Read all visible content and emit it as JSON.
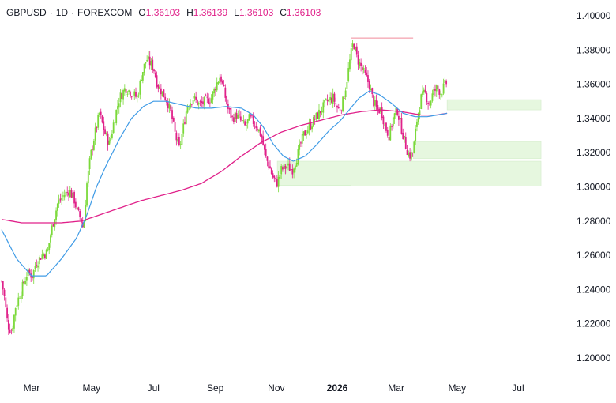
{
  "legend": {
    "symbol": "GBPUSD",
    "timeframe": "1D",
    "exchange": "FOREXCOM",
    "separator": "·",
    "open_label": "O",
    "open": "1.36103",
    "high_label": "H",
    "high": "1.36139",
    "low_label": "L",
    "low": "1.36103",
    "close_label": "C",
    "close": "1.36103"
  },
  "colors": {
    "up": "#7bd93a",
    "down": "#e0218a",
    "ma_fast": "#3f9be6",
    "ma_slow": "#e0218a",
    "zone_fill": "#e6f7df",
    "zone_edge": "#d4eccb",
    "high_line": "#f08a9a",
    "low_line": "#7bc96a",
    "axis_text": "#131722"
  },
  "chart_data": {
    "type": "candlestick",
    "symbol": "GBPUSD",
    "interval": "1D",
    "ylim": [
      1.19,
      1.405
    ],
    "y_ticks": [
      "1.40000",
      "1.38000",
      "1.36000",
      "1.34000",
      "1.32000",
      "1.30000",
      "1.28000",
      "1.26000",
      "1.24000",
      "1.22000",
      "1.20000"
    ],
    "x_ticks": [
      "Mar",
      "May",
      "Jul",
      "Sep",
      "Nov",
      "2026",
      "Mar",
      "May",
      "Jul"
    ],
    "x_tick_day_index": [
      30,
      90,
      152,
      214,
      275,
      336,
      395,
      456,
      517
    ],
    "days_visible": 540,
    "close_anchor_points": [
      [
        0,
        1.245
      ],
      [
        3,
        1.235
      ],
      [
        6,
        1.22
      ],
      [
        10,
        1.215
      ],
      [
        14,
        1.23
      ],
      [
        20,
        1.24
      ],
      [
        26,
        1.25
      ],
      [
        31,
        1.248
      ],
      [
        34,
        1.255
      ],
      [
        40,
        1.26
      ],
      [
        46,
        1.262
      ],
      [
        50,
        1.275
      ],
      [
        56,
        1.29
      ],
      [
        62,
        1.295
      ],
      [
        68,
        1.298
      ],
      [
        73,
        1.292
      ],
      [
        76,
        1.285
      ],
      [
        79,
        1.282
      ],
      [
        82,
        1.275
      ],
      [
        85,
        1.3
      ],
      [
        89,
        1.318
      ],
      [
        93,
        1.33
      ],
      [
        98,
        1.343
      ],
      [
        103,
        1.332
      ],
      [
        108,
        1.325
      ],
      [
        113,
        1.34
      ],
      [
        118,
        1.352
      ],
      [
        124,
        1.358
      ],
      [
        130,
        1.355
      ],
      [
        136,
        1.352
      ],
      [
        140,
        1.365
      ],
      [
        145,
        1.375
      ],
      [
        149,
        1.372
      ],
      [
        152,
        1.37
      ],
      [
        156,
        1.36
      ],
      [
        161,
        1.355
      ],
      [
        166,
        1.35
      ],
      [
        170,
        1.342
      ],
      [
        174,
        1.33
      ],
      [
        178,
        1.322
      ],
      [
        182,
        1.335
      ],
      [
        186,
        1.348
      ],
      [
        192,
        1.352
      ],
      [
        198,
        1.348
      ],
      [
        204,
        1.35
      ],
      [
        210,
        1.352
      ],
      [
        215,
        1.36
      ],
      [
        219,
        1.365
      ],
      [
        223,
        1.355
      ],
      [
        227,
        1.345
      ],
      [
        231,
        1.34
      ],
      [
        235,
        1.342
      ],
      [
        240,
        1.338
      ],
      [
        244,
        1.335
      ],
      [
        248,
        1.34
      ],
      [
        252,
        1.338
      ],
      [
        256,
        1.335
      ],
      [
        260,
        1.33
      ],
      [
        264,
        1.318
      ],
      [
        268,
        1.312
      ],
      [
        272,
        1.305
      ],
      [
        276,
        1.302
      ],
      [
        280,
        1.31
      ],
      [
        286,
        1.312
      ],
      [
        291,
        1.31
      ],
      [
        296,
        1.318
      ],
      [
        302,
        1.33
      ],
      [
        308,
        1.335
      ],
      [
        314,
        1.34
      ],
      [
        320,
        1.345
      ],
      [
        326,
        1.35
      ],
      [
        332,
        1.352
      ],
      [
        337,
        1.345
      ],
      [
        341,
        1.348
      ],
      [
        345,
        1.36
      ],
      [
        349,
        1.375
      ],
      [
        352,
        1.385
      ],
      [
        356,
        1.375
      ],
      [
        360,
        1.37
      ],
      [
        364,
        1.365
      ],
      [
        368,
        1.36
      ],
      [
        372,
        1.35
      ],
      [
        376,
        1.345
      ],
      [
        380,
        1.345
      ],
      [
        384,
        1.335
      ],
      [
        388,
        1.33
      ],
      [
        392,
        1.34
      ],
      [
        396,
        1.345
      ],
      [
        400,
        1.335
      ],
      [
        404,
        1.325
      ],
      [
        408,
        1.318
      ],
      [
        412,
        1.32
      ],
      [
        416,
        1.34
      ],
      [
        420,
        1.352
      ],
      [
        424,
        1.355
      ],
      [
        428,
        1.348
      ],
      [
        432,
        1.355
      ],
      [
        436,
        1.358
      ],
      [
        440,
        1.355
      ],
      [
        444,
        1.36
      ],
      [
        446,
        1.361
      ]
    ],
    "ma_fast_anchor_points": [
      [
        0,
        1.275
      ],
      [
        15,
        1.258
      ],
      [
        30,
        1.248
      ],
      [
        45,
        1.248
      ],
      [
        60,
        1.258
      ],
      [
        75,
        1.27
      ],
      [
        85,
        1.283
      ],
      [
        95,
        1.3
      ],
      [
        105,
        1.313
      ],
      [
        118,
        1.328
      ],
      [
        130,
        1.34
      ],
      [
        142,
        1.347
      ],
      [
        152,
        1.35
      ],
      [
        165,
        1.35
      ],
      [
        180,
        1.348
      ],
      [
        195,
        1.346
      ],
      [
        210,
        1.346
      ],
      [
        225,
        1.347
      ],
      [
        240,
        1.346
      ],
      [
        252,
        1.342
      ],
      [
        262,
        1.335
      ],
      [
        272,
        1.325
      ],
      [
        282,
        1.318
      ],
      [
        292,
        1.315
      ],
      [
        304,
        1.318
      ],
      [
        316,
        1.325
      ],
      [
        328,
        1.333
      ],
      [
        338,
        1.338
      ],
      [
        348,
        1.345
      ],
      [
        358,
        1.352
      ],
      [
        368,
        1.356
      ],
      [
        378,
        1.354
      ],
      [
        390,
        1.349
      ],
      [
        402,
        1.343
      ],
      [
        414,
        1.341
      ],
      [
        426,
        1.341
      ],
      [
        436,
        1.342
      ],
      [
        446,
        1.343
      ]
    ],
    "ma_slow_anchor_points": [
      [
        0,
        1.281
      ],
      [
        20,
        1.279
      ],
      [
        40,
        1.279
      ],
      [
        60,
        1.279
      ],
      [
        80,
        1.28
      ],
      [
        100,
        1.284
      ],
      [
        120,
        1.288
      ],
      [
        140,
        1.292
      ],
      [
        160,
        1.295
      ],
      [
        180,
        1.298
      ],
      [
        200,
        1.302
      ],
      [
        220,
        1.309
      ],
      [
        240,
        1.318
      ],
      [
        260,
        1.326
      ],
      [
        280,
        1.332
      ],
      [
        300,
        1.336
      ],
      [
        320,
        1.339
      ],
      [
        340,
        1.342
      ],
      [
        360,
        1.344
      ],
      [
        380,
        1.345
      ],
      [
        400,
        1.344
      ],
      [
        420,
        1.342
      ],
      [
        435,
        1.342
      ],
      [
        446,
        1.343
      ]
    ],
    "zones": [
      {
        "from_day": 446,
        "to_day": 540,
        "y_top": 1.351,
        "y_bottom": 1.345
      },
      {
        "from_day": 412,
        "to_day": 540,
        "y_top": 1.3265,
        "y_bottom": 1.3165
      },
      {
        "from_day": 276,
        "to_day": 540,
        "y_top": 1.315,
        "y_bottom": 1.3005
      }
    ],
    "high_line": {
      "from_day": 350,
      "to_day": 412,
      "y": 1.387
    },
    "low_line": {
      "from_day": 276,
      "to_day": 350,
      "y": 1.3005
    }
  }
}
